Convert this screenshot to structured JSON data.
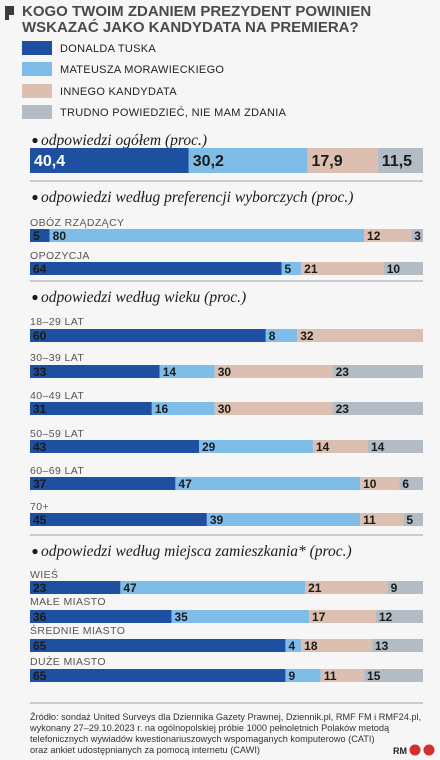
{
  "title_lines": [
    "KOGO TWOIM ZDANIEM PREZYDENT POWINIEN",
    "WSKAZAĆ JAKO KANDYDATA NA PREMIERA?"
  ],
  "colors": {
    "tusk": "#1f4fa0",
    "morawiecki": "#7fbde9",
    "inny": "#dcbfb0",
    "trudno": "#b3bcc5",
    "divider": "#9aa3ab"
  },
  "source_lines": [
    "Źródło: sondaż United Surveys dla Dziennika Gazety Prawnej, Dziennik.pl, RMF FM i RMF24.pl,",
    "wykonany 27–29.10.2023 r. na ogólnopolskiej próbie 1000 pełnoletnich Polaków metodą",
    "telefonicznych wywiadów kwestionariuszowych wspomaganych komputerowo (CATI)",
    "oraz ankiet udostępnianych za pomocą internetu (CAWI)"
  ],
  "logo_text": "RM",
  "chart_data": {
    "type": "bar",
    "orientation": "horizontal",
    "stacked": true,
    "title": "KOGO TWOIM ZDANIEM PREZYDENT POWINIEN WSKAZAĆ JAKO KANDYDATA NA PREMIERA?",
    "unit": "proc.",
    "legend": [
      "DONALDA TUSKA",
      "MATEUSZA MORAWIECKIEGO",
      "INNEGO KANDYDATA",
      "TRUDNO POWIEDZIEĆ, NIE MAM ZDANIA"
    ],
    "legend_position": "top",
    "sections": [
      {
        "label": "odpowiedzi ogółem (proc.)",
        "rows": [
          {
            "label": "",
            "values": [
              "40,4",
              "30,2",
              "17,9",
              "11,5"
            ]
          }
        ]
      },
      {
        "label": "odpowiedzi według preferencji wyborczych (proc.)",
        "rows": [
          {
            "label": "OBÓZ RZĄDZĄCY",
            "values": [
              "5",
              "80",
              "12",
              "3"
            ]
          },
          {
            "label": "OPOZYCJA",
            "values": [
              "64",
              "5",
              "21",
              "10"
            ]
          }
        ]
      },
      {
        "label": "odpowiedzi według wieku (proc.)",
        "rows": [
          {
            "label": "18–29 LAT",
            "values": [
              "60",
              "8",
              "32",
              ""
            ]
          },
          {
            "label": "30–39 LAT",
            "values": [
              "33",
              "14",
              "30",
              "23"
            ]
          },
          {
            "label": "40–49 LAT",
            "values": [
              "31",
              "16",
              "30",
              "23"
            ]
          },
          {
            "label": "50–59 LAT",
            "values": [
              "43",
              "29",
              "14",
              "14"
            ]
          },
          {
            "label": "60–69 LAT",
            "values": [
              "37",
              "47",
              "10",
              "6"
            ]
          },
          {
            "label": "70+",
            "values": [
              "45",
              "39",
              "11",
              "5"
            ]
          }
        ]
      },
      {
        "label": "odpowiedzi według miejsca zamieszkania* (proc.)",
        "rows": [
          {
            "label": "WIEŚ",
            "values": [
              "23",
              "47",
              "21",
              "9"
            ]
          },
          {
            "label": "MAŁE MIASTO",
            "values": [
              "36",
              "35",
              "17",
              "12"
            ]
          },
          {
            "label": "ŚREDNIE MIASTO",
            "values": [
              "65",
              "4",
              "18",
              "13"
            ]
          },
          {
            "label": "DUŻE MIASTO",
            "values": [
              "65",
              "9",
              "11",
              "15"
            ]
          }
        ]
      }
    ]
  }
}
